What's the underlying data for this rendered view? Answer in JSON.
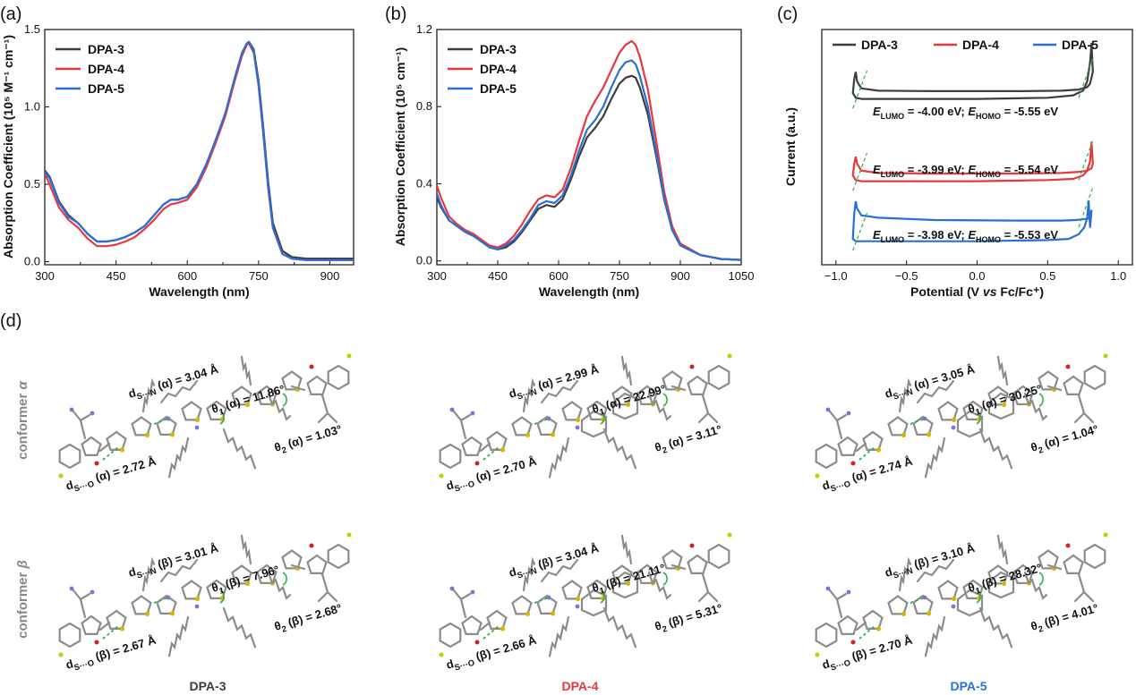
{
  "colors": {
    "dpa3": "#3d3d3d",
    "dpa4": "#e8383d",
    "dpa5": "#2a6fd6",
    "hbond": "#2bb14a",
    "gray": "#8c8c8c",
    "sulfur": "#d8b400",
    "nitrogen": "#7d72d8",
    "fluorine": "#b6d400",
    "oxygen": "#d42020"
  },
  "panel_labels": {
    "a": "(a)",
    "b": "(b)",
    "c": "(c)",
    "d": "(d)"
  },
  "chart_data": [
    {
      "id": "a",
      "type": "line",
      "xlabel": "Wavelength (nm)",
      "ylabel": "Absorption Coefficient (10⁵ M⁻¹ cm⁻¹)",
      "xlim": [
        300,
        950
      ],
      "ylim": [
        -0.02,
        1.5
      ],
      "xticks": [
        300,
        450,
        600,
        750,
        900
      ],
      "yticks": [
        0.0,
        0.5,
        1.0,
        1.5
      ],
      "ytick_labels": [
        "0.0",
        "0.5",
        "1.0",
        "1.5"
      ],
      "legend": [
        "DPA-3",
        "DPA-4",
        "DPA-5"
      ],
      "series": [
        {
          "name": "DPA-3",
          "color": "#3d3d3d",
          "x": [
            300,
            310,
            330,
            350,
            370,
            390,
            410,
            430,
            450,
            470,
            490,
            510,
            530,
            550,
            565,
            580,
            600,
            620,
            640,
            660,
            680,
            700,
            715,
            725,
            730,
            740,
            750,
            760,
            770,
            780,
            800,
            820,
            850,
            900,
            950
          ],
          "y": [
            0.59,
            0.55,
            0.39,
            0.3,
            0.25,
            0.18,
            0.13,
            0.13,
            0.14,
            0.16,
            0.19,
            0.23,
            0.3,
            0.37,
            0.4,
            0.4,
            0.42,
            0.5,
            0.63,
            0.78,
            0.95,
            1.18,
            1.34,
            1.41,
            1.42,
            1.37,
            1.17,
            0.86,
            0.52,
            0.25,
            0.07,
            0.03,
            0.02,
            0.02,
            0.02
          ]
        },
        {
          "name": "DPA-4",
          "color": "#e8383d",
          "x": [
            300,
            310,
            330,
            350,
            370,
            390,
            410,
            430,
            450,
            470,
            490,
            510,
            530,
            550,
            565,
            580,
            600,
            620,
            640,
            660,
            680,
            700,
            715,
            725,
            730,
            740,
            750,
            760,
            770,
            780,
            800,
            820,
            850,
            900,
            950
          ],
          "y": [
            0.57,
            0.5,
            0.35,
            0.27,
            0.22,
            0.15,
            0.1,
            0.1,
            0.11,
            0.13,
            0.16,
            0.21,
            0.27,
            0.34,
            0.37,
            0.38,
            0.4,
            0.48,
            0.61,
            0.77,
            0.94,
            1.17,
            1.33,
            1.4,
            1.41,
            1.35,
            1.14,
            0.82,
            0.48,
            0.22,
            0.05,
            0.02,
            0.01,
            0.01,
            0.01
          ]
        },
        {
          "name": "DPA-5",
          "color": "#2a6fd6",
          "x": [
            300,
            310,
            330,
            350,
            370,
            390,
            410,
            430,
            450,
            470,
            490,
            510,
            530,
            550,
            565,
            580,
            600,
            620,
            640,
            660,
            680,
            700,
            715,
            725,
            730,
            740,
            750,
            760,
            770,
            780,
            800,
            820,
            850,
            900,
            950
          ],
          "y": [
            0.58,
            0.54,
            0.38,
            0.29,
            0.25,
            0.18,
            0.13,
            0.13,
            0.14,
            0.16,
            0.19,
            0.23,
            0.3,
            0.37,
            0.4,
            0.4,
            0.42,
            0.5,
            0.63,
            0.79,
            0.96,
            1.19,
            1.35,
            1.41,
            1.42,
            1.36,
            1.15,
            0.83,
            0.49,
            0.22,
            0.05,
            0.02,
            0.01,
            0.01,
            0.01
          ]
        }
      ]
    },
    {
      "id": "b",
      "type": "line",
      "xlabel": "Wavelength (nm)",
      "ylabel": "Absorption Coefficient (10⁵ cm⁻¹)",
      "xlim": [
        300,
        1050
      ],
      "ylim": [
        -0.02,
        1.2
      ],
      "xticks": [
        300,
        450,
        600,
        750,
        900,
        1050
      ],
      "yticks": [
        0.0,
        0.4,
        0.8,
        1.2
      ],
      "ytick_labels": [
        "0.0",
        "0.4",
        "0.8",
        "1.2"
      ],
      "legend": [
        "DPA-3",
        "DPA-4",
        "DPA-5"
      ],
      "series": [
        {
          "name": "DPA-3",
          "color": "#3d3d3d",
          "x": [
            300,
            310,
            330,
            350,
            370,
            390,
            410,
            430,
            450,
            470,
            490,
            510,
            530,
            550,
            570,
            590,
            610,
            630,
            650,
            670,
            690,
            710,
            730,
            750,
            765,
            780,
            790,
            800,
            820,
            840,
            860,
            880,
            900,
            950,
            1000,
            1050
          ],
          "y": [
            0.33,
            0.28,
            0.21,
            0.18,
            0.15,
            0.13,
            0.1,
            0.07,
            0.06,
            0.07,
            0.1,
            0.15,
            0.21,
            0.27,
            0.29,
            0.28,
            0.32,
            0.42,
            0.54,
            0.64,
            0.69,
            0.75,
            0.84,
            0.92,
            0.95,
            0.96,
            0.95,
            0.9,
            0.76,
            0.55,
            0.32,
            0.16,
            0.08,
            0.03,
            0.01,
            0.005
          ]
        },
        {
          "name": "DPA-4",
          "color": "#e8383d",
          "x": [
            300,
            310,
            330,
            350,
            370,
            390,
            410,
            430,
            450,
            470,
            490,
            510,
            530,
            550,
            570,
            590,
            610,
            630,
            650,
            670,
            690,
            710,
            730,
            750,
            765,
            780,
            790,
            800,
            820,
            840,
            860,
            880,
            900,
            950,
            1000,
            1050
          ],
          "y": [
            0.39,
            0.33,
            0.23,
            0.19,
            0.16,
            0.14,
            0.11,
            0.08,
            0.07,
            0.09,
            0.13,
            0.19,
            0.26,
            0.32,
            0.34,
            0.33,
            0.37,
            0.48,
            0.62,
            0.75,
            0.83,
            0.9,
            0.99,
            1.08,
            1.12,
            1.14,
            1.12,
            1.06,
            0.89,
            0.63,
            0.36,
            0.18,
            0.09,
            0.03,
            0.01,
            0.005
          ]
        },
        {
          "name": "DPA-5",
          "color": "#2a6fd6",
          "x": [
            300,
            310,
            330,
            350,
            370,
            390,
            410,
            430,
            450,
            470,
            490,
            510,
            530,
            550,
            570,
            590,
            610,
            630,
            650,
            670,
            690,
            710,
            730,
            750,
            765,
            780,
            790,
            800,
            820,
            840,
            860,
            880,
            900,
            950,
            1000,
            1050
          ],
          "y": [
            0.35,
            0.29,
            0.21,
            0.18,
            0.15,
            0.13,
            0.1,
            0.07,
            0.06,
            0.08,
            0.11,
            0.16,
            0.22,
            0.29,
            0.31,
            0.3,
            0.34,
            0.44,
            0.57,
            0.68,
            0.73,
            0.8,
            0.9,
            0.99,
            1.03,
            1.04,
            1.02,
            0.96,
            0.8,
            0.57,
            0.33,
            0.16,
            0.08,
            0.03,
            0.01,
            0.005
          ]
        }
      ]
    },
    {
      "id": "c",
      "type": "line",
      "xlabel": "Potential (V vs Fc/Fc⁺)",
      "ylabel": "Current (a.u.)",
      "xlim": [
        -1.1,
        1.1
      ],
      "ylim": [
        0,
        10
      ],
      "xticks": [
        -1.0,
        -0.5,
        0.0,
        0.5,
        1.0
      ],
      "xtick_labels": [
        "−1.0",
        "−0.5",
        "0.0",
        "0.5",
        "1.0"
      ],
      "legend": [
        "DPA-3",
        "DPA-4",
        "DPA-5"
      ],
      "annotations": [
        "E_LUMO = -4.00 eV; E_HOMO = -5.55 eV",
        "E_LUMO = -3.99 eV; E_HOMO = -5.54 eV",
        "E_LUMO = -3.98 eV; E_HOMO = -5.53 eV"
      ],
      "series": [
        {
          "name": "DPA-3",
          "color": "#3d3d3d",
          "x": [
            -0.86,
            -0.87,
            -0.88,
            -0.86,
            -0.82,
            -0.75,
            -0.5,
            0,
            0.5,
            0.68,
            0.75,
            0.78,
            0.8,
            0.81,
            0.82,
            0.8,
            0.78,
            0.72,
            0.6,
            0.3,
            -0.3,
            -0.7,
            -0.82,
            -0.85,
            -0.86
          ],
          "y": [
            8.2,
            7.9,
            7.3,
            7.1,
            7.05,
            7.05,
            7.05,
            7.05,
            7.1,
            7.2,
            7.4,
            7.8,
            8.6,
            9.4,
            8.2,
            7.7,
            7.55,
            7.45,
            7.4,
            7.38,
            7.38,
            7.4,
            7.5,
            7.8,
            8.2
          ]
        },
        {
          "name": "DPA-4",
          "color": "#e8383d",
          "x": [
            -0.86,
            -0.87,
            -0.88,
            -0.86,
            -0.82,
            -0.75,
            -0.5,
            0,
            0.5,
            0.68,
            0.75,
            0.78,
            0.8,
            0.81,
            0.82,
            0.81,
            0.78,
            0.72,
            0.6,
            0.3,
            -0.3,
            -0.7,
            -0.82,
            -0.85,
            -0.86
          ],
          "y": [
            4.6,
            4.3,
            3.8,
            3.6,
            3.55,
            3.55,
            3.55,
            3.55,
            3.6,
            3.65,
            3.8,
            4.0,
            4.4,
            5.2,
            4.3,
            4.1,
            4.0,
            3.95,
            3.9,
            3.88,
            3.88,
            3.9,
            4.0,
            4.3,
            4.6
          ]
        },
        {
          "name": "DPA-5",
          "color": "#2a6fd6",
          "x": [
            -0.86,
            -0.87,
            -0.88,
            -0.86,
            -0.82,
            -0.75,
            -0.5,
            0,
            0.5,
            0.65,
            0.72,
            0.76,
            0.78,
            0.79,
            0.8,
            0.81,
            0.8,
            0.77,
            0.7,
            0.6,
            0.3,
            -0.3,
            -0.7,
            -0.82,
            -0.85,
            -0.86
          ],
          "y": [
            2.7,
            2.2,
            1.1,
            1.0,
            1.0,
            1.0,
            1.0,
            1.0,
            1.05,
            1.1,
            1.3,
            1.6,
            2.0,
            2.7,
            1.6,
            2.3,
            2.0,
            1.95,
            1.9,
            1.88,
            1.88,
            1.9,
            2.0,
            2.1,
            2.4,
            2.7
          ]
        }
      ]
    }
  ],
  "panel_d": {
    "row_labels": [
      "conformer α",
      "conformer β"
    ],
    "molecule_labels": [
      "DPA-3",
      "DPA-4",
      "DPA-5"
    ],
    "annotations": [
      {
        "sn": "d_S···N (α) = 3.04 Å",
        "so": "d_S···O (α) = 2.72 Å",
        "t1": "θ_1 (α) = 11.86°",
        "t2": "θ_2 (α) = 1.03°"
      },
      {
        "sn": "d_S···N (α) = 2.99 Å",
        "so": "d_S···O (α) = 2.70 Å",
        "t1": "θ_1 (α) = 22.99°",
        "t2": "θ_2 (α) = 3.11°"
      },
      {
        "sn": "d_S···N (α) = 3.05 Å",
        "so": "d_S···O (α) = 2.74 Å",
        "t1": "θ_1 (α) = 30.25°",
        "t2": "θ_2 (α) = 1.04°"
      },
      {
        "sn": "d_S···N (β) = 3.01 Å",
        "so": "d_S···O (β) = 2.67 Å",
        "t1": "θ_1 (β) = 7.96°",
        "t2": "θ_2 (β) = 2.68°"
      },
      {
        "sn": "d_S···N (β) = 3.04 Å",
        "so": "d_S···O (β) = 2.66 Å",
        "t1": "θ_1 (β) = 21.11°",
        "t2": "θ_2 (β) = 5.31°"
      },
      {
        "sn": "d_S···N (β) = 3.10 Å",
        "so": "d_S···O (β) = 2.70 Å",
        "t1": "θ_1 (β) = 28.32°",
        "t2": "θ_2 (β) = 4.01°"
      }
    ]
  }
}
